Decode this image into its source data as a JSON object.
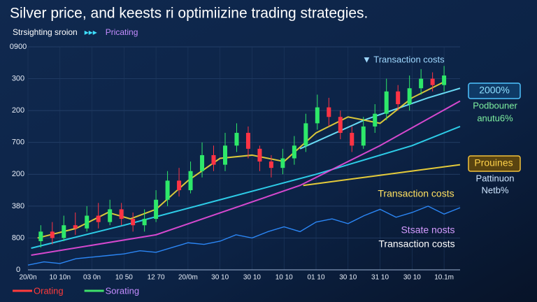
{
  "chart_data": {
    "type": "candlestick",
    "title": "Silver price, and keests ri optimiizine trading strategies.",
    "legend": [
      {
        "label": "Strsighting sroion",
        "color": "#ffffff"
      },
      {
        "label": "Pricating",
        "color": "#c58cff"
      }
    ],
    "bottom_legend": [
      {
        "label": "Orating",
        "color": "#ff3b3b"
      },
      {
        "label": "Sorating",
        "color": "#c58cff"
      }
    ],
    "xlim": [
      0,
      13.5
    ],
    "xticks": [
      {
        "value": 0,
        "label": "20/0n"
      },
      {
        "value": 1,
        "label": "10 10n"
      },
      {
        "value": 2,
        "label": "03 0n"
      },
      {
        "value": 3,
        "label": "10 50"
      },
      {
        "value": 4,
        "label": "12 70"
      },
      {
        "value": 5,
        "label": "20/0m"
      },
      {
        "value": 6,
        "label": "30 10"
      },
      {
        "value": 7,
        "label": "30 10"
      },
      {
        "value": 8,
        "label": "10 10"
      },
      {
        "value": 9,
        "label": "01 10"
      },
      {
        "value": 10,
        "label": "30 10"
      },
      {
        "value": 11,
        "label": "31 10"
      },
      {
        "value": 12,
        "label": "30 10"
      },
      {
        "value": 13,
        "label": "10.1m"
      }
    ],
    "ylim": [
      0,
      7
    ],
    "yticks": [
      {
        "value": 0,
        "label": "0"
      },
      {
        "value": 1,
        "label": "800"
      },
      {
        "value": 2,
        "label": "380"
      },
      {
        "value": 3,
        "label": "200"
      },
      {
        "value": 4,
        "label": "700"
      },
      {
        "value": 5,
        "label": "200"
      },
      {
        "value": 6,
        "label": "300"
      },
      {
        "value": 7,
        "label": "0900"
      }
    ],
    "grid": true,
    "up_color": "#2ee86a",
    "down_color": "#ff3344",
    "candles": {
      "x": [
        0.4,
        0.76,
        1.12,
        1.48,
        1.84,
        2.2,
        2.56,
        2.92,
        3.28,
        3.64,
        4.0,
        4.36,
        4.72,
        5.08,
        5.44,
        5.8,
        6.16,
        6.52,
        6.88,
        7.24,
        7.6,
        7.96,
        8.32,
        8.68,
        9.04,
        9.4,
        9.76,
        10.12,
        10.48,
        10.84,
        11.2,
        11.56,
        11.92,
        12.28,
        12.64,
        13.0
      ],
      "open": [
        0.9,
        1.2,
        1.0,
        1.4,
        1.3,
        1.7,
        1.5,
        1.9,
        1.6,
        1.4,
        1.6,
        2.2,
        2.8,
        2.5,
        3.1,
        3.6,
        3.3,
        3.9,
        4.3,
        3.8,
        3.4,
        3.2,
        3.5,
        3.9,
        4.6,
        5.1,
        4.8,
        4.3,
        3.9,
        4.5,
        4.9,
        5.6,
        5.2,
        5.7,
        6.0,
        5.8
      ],
      "high": [
        1.4,
        1.5,
        1.7,
        1.8,
        2.0,
        2.1,
        2.2,
        2.1,
        1.8,
        1.9,
        2.5,
        3.1,
        3.2,
        3.4,
        4.0,
        3.9,
        4.3,
        4.6,
        4.5,
        3.9,
        3.6,
        3.8,
        4.2,
        4.9,
        5.5,
        5.4,
        5.0,
        4.5,
        4.8,
        5.2,
        6.0,
        5.8,
        6.1,
        6.3,
        6.2,
        6.4
      ],
      "low": [
        0.7,
        0.8,
        0.9,
        1.1,
        1.2,
        1.3,
        1.4,
        1.4,
        1.2,
        1.2,
        1.5,
        2.0,
        2.3,
        2.4,
        2.9,
        3.1,
        3.1,
        3.7,
        3.5,
        3.1,
        2.9,
        3.0,
        3.3,
        3.7,
        4.4,
        4.5,
        4.1,
        3.7,
        3.8,
        4.3,
        4.7,
        5.0,
        5.0,
        5.5,
        5.6,
        5.6
      ],
      "close": [
        1.2,
        1.0,
        1.4,
        1.3,
        1.7,
        1.5,
        1.9,
        1.6,
        1.4,
        1.6,
        2.2,
        2.8,
        2.5,
        3.1,
        3.6,
        3.3,
        3.9,
        4.3,
        3.8,
        3.4,
        3.2,
        3.5,
        3.9,
        4.6,
        5.1,
        4.8,
        4.3,
        3.9,
        4.5,
        4.9,
        5.6,
        5.2,
        5.7,
        6.0,
        5.8,
        6.1
      ]
    },
    "series": [
      {
        "color": "#2d8cff",
        "x": [
          0,
          0.5,
          1,
          1.5,
          2,
          2.5,
          3,
          3.5,
          4,
          4.5,
          5,
          5.5,
          6,
          6.5,
          7,
          7.5,
          8,
          8.5,
          9,
          9.5,
          10,
          10.5,
          11,
          11.5,
          12,
          12.5,
          13,
          13.5
        ],
        "values": [
          0.15,
          0.25,
          0.2,
          0.35,
          0.4,
          0.45,
          0.5,
          0.6,
          0.55,
          0.7,
          0.85,
          0.8,
          0.9,
          1.1,
          1.0,
          1.2,
          1.35,
          1.2,
          1.5,
          1.6,
          1.45,
          1.7,
          1.9,
          1.65,
          1.8,
          2.0,
          1.75,
          1.95
        ]
      },
      {
        "color": "#2fd6f0",
        "x": [
          0.1,
          3,
          6,
          9,
          12,
          13.5
        ],
        "values": [
          0.68,
          1.4,
          2.2,
          3.0,
          3.9,
          4.5
        ]
      },
      {
        "color": "#6fe6ff",
        "x": [
          8.5,
          10.5,
          12.5,
          13.5
        ],
        "values": [
          3.8,
          4.7,
          5.4,
          5.7
        ]
      },
      {
        "color": "#e04bd6",
        "x": [
          0.1,
          4,
          8.5,
          11,
          13.5
        ],
        "values": [
          0.46,
          1.1,
          2.65,
          3.9,
          5.3
        ]
      },
      {
        "color": "#e6d23a",
        "x": [
          0.3,
          1.5,
          2.5,
          3.2,
          4,
          5,
          6,
          7,
          8,
          9,
          10,
          11,
          12,
          13
        ],
        "values": [
          1.0,
          1.3,
          1.8,
          1.6,
          1.9,
          2.8,
          3.5,
          3.6,
          3.4,
          4.3,
          4.8,
          4.6,
          5.4,
          5.9
        ]
      },
      {
        "color": "#f0d43a",
        "x": [
          8.6,
          13.5
        ],
        "values": [
          2.65,
          3.3
        ]
      }
    ],
    "annotations": [
      {
        "text": "▼ Transaction costs",
        "color": "#9fd8ff"
      },
      {
        "text": "2000%",
        "color": "#8fe0ff"
      },
      {
        "text": "Podbouner",
        "color": "#7ef0a0"
      },
      {
        "text": "anutu6%",
        "color": "#7ef0a0"
      },
      {
        "text": "Prouines",
        "color": "#ffd24a"
      },
      {
        "text": "Pattinuon",
        "color": "#cfe6ff"
      },
      {
        "text": "Netb%",
        "color": "#cfe6ff"
      },
      {
        "text": "Transaction costs",
        "color": "#ffe060"
      },
      {
        "text": "Stsate nosts",
        "color": "#d49bff"
      },
      {
        "text": "Transaction costs",
        "color": "#ffffff"
      }
    ]
  }
}
